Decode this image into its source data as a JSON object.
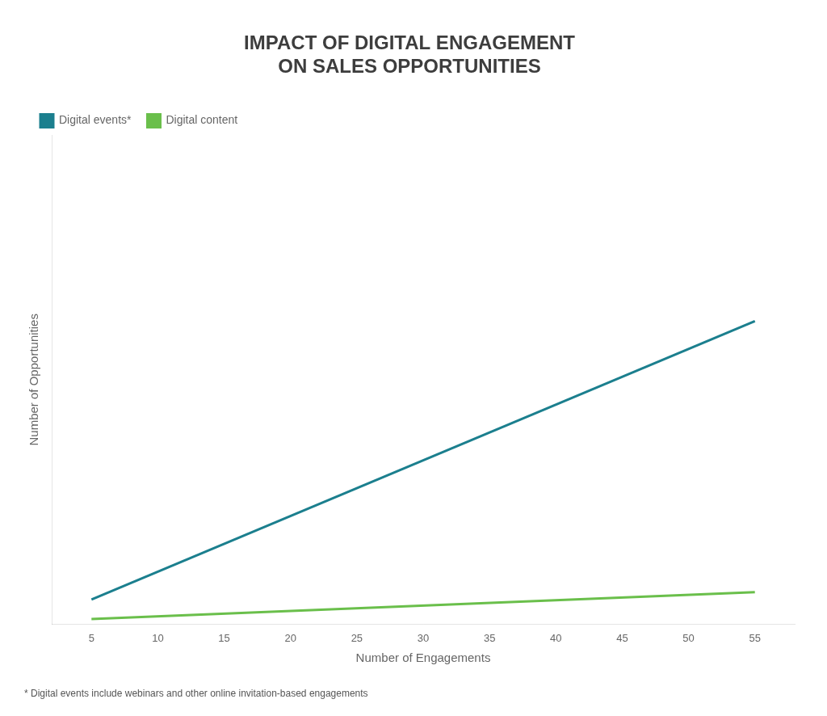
{
  "chart_data": {
    "type": "line",
    "title": "IMPACT OF DIGITAL ENGAGEMENT\nON SALES OPPORTUNITIES",
    "x_label": "Number of Engagements",
    "y_label": "Number of Opportunities",
    "x": [
      5,
      55
    ],
    "series": [
      {
        "name": "Digital events*",
        "color": "#1b7f8e",
        "values": [
          0.05,
          0.62
        ]
      },
      {
        "name": "Digital content",
        "color": "#6abf4b",
        "values": [
          0.01,
          0.065
        ]
      }
    ],
    "xlim": [
      2,
      58
    ],
    "xticks": [
      5,
      10,
      15,
      20,
      25,
      30,
      35,
      40,
      45,
      50,
      55
    ],
    "ylim": [
      0,
      1.0
    ],
    "tick_labels": "x",
    "grid": false,
    "legend": "upper left",
    "annotations": [
      "* Digital events include webinars and other online invitation-based engagements"
    ]
  }
}
